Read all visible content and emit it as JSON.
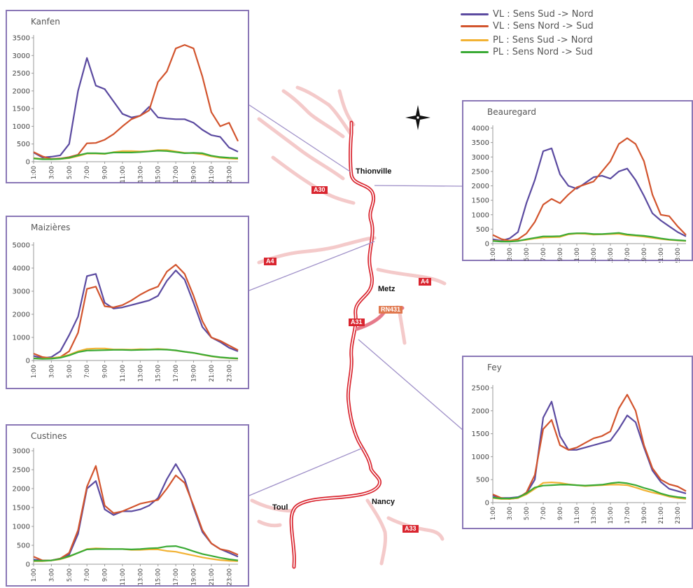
{
  "legend": [
    {
      "label": "VL : Sens Sud -> Nord",
      "color": "#5b4aa0"
    },
    {
      "label": "VL : Sens Nord -> Sud",
      "color": "#d2542d"
    },
    {
      "label": "PL : Sens Sud -> Nord",
      "color": "#f2b233"
    },
    {
      "label": "PL : Sens Nord -> Sud",
      "color": "#3aaa35"
    }
  ],
  "map": {
    "cities": {
      "thionville": "Thionville",
      "metz": "Metz",
      "nancy": "Nancy",
      "toul": "Toul"
    },
    "roads": {
      "a30": "A30",
      "a4_west": "A4",
      "a4_east": "A4",
      "a31": "A31",
      "rn431": "RN431",
      "a33": "A33"
    },
    "compass_icon": "compass-icon"
  },
  "chart_data": [
    {
      "type": "line",
      "title": "Kanfen",
      "x": [
        "1:00",
        "2:00",
        "3:00",
        "4:00",
        "5:00",
        "6:00",
        "7:00",
        "8:00",
        "9:00",
        "10:00",
        "11:00",
        "12:00",
        "13:00",
        "14:00",
        "15:00",
        "16:00",
        "17:00",
        "18:00",
        "19:00",
        "20:00",
        "21:00",
        "22:00",
        "23:00",
        "24:00"
      ],
      "xticks": [
        "1:00",
        "3:00",
        "5:00",
        "7:00",
        "9:00",
        "11:00",
        "13:00",
        "15:00",
        "17:00",
        "19:00",
        "21:00",
        "23:00"
      ],
      "ylim": [
        0,
        3500
      ],
      "yticks": [
        0,
        500,
        1000,
        1500,
        2000,
        2500,
        3000,
        3500
      ],
      "series": [
        {
          "values": [
            260,
            120,
            140,
            180,
            500,
            2000,
            2930,
            2150,
            2050,
            1700,
            1350,
            1250,
            1300,
            1550,
            1250,
            1220,
            1200,
            1200,
            1100,
            900,
            750,
            700,
            400,
            280
          ]
        },
        {
          "values": [
            270,
            150,
            80,
            90,
            130,
            200,
            520,
            530,
            620,
            780,
            1000,
            1200,
            1300,
            1450,
            2250,
            2550,
            3200,
            3300,
            3200,
            2400,
            1400,
            1000,
            1100,
            580
          ]
        },
        {
          "values": [
            100,
            80,
            70,
            80,
            100,
            160,
            230,
            230,
            220,
            270,
            300,
            300,
            290,
            300,
            330,
            330,
            290,
            250,
            240,
            210,
            150,
            110,
            90,
            80
          ]
        },
        {
          "values": [
            90,
            70,
            70,
            80,
            110,
            180,
            240,
            240,
            230,
            260,
            260,
            260,
            270,
            290,
            310,
            300,
            270,
            240,
            250,
            240,
            170,
            130,
            110,
            100
          ]
        }
      ]
    },
    {
      "type": "line",
      "title": "Beauregard",
      "x": [
        "1:00",
        "2:00",
        "3:00",
        "4:00",
        "5:00",
        "6:00",
        "7:00",
        "8:00",
        "9:00",
        "10:00",
        "11:00",
        "12:00",
        "13:00",
        "14:00",
        "15:00",
        "16:00",
        "17:00",
        "18:00",
        "19:00",
        "20:00",
        "21:00",
        "22:00",
        "23:00",
        "24:00"
      ],
      "xticks": [
        "1:00",
        "3:00",
        "5:00",
        "7:00",
        "9:00",
        "11:00",
        "13:00",
        "15:00",
        "17:00",
        "19:00",
        "21:00",
        "23:00"
      ],
      "ylim": [
        0,
        4000
      ],
      "yticks": [
        0,
        500,
        1000,
        1500,
        2000,
        2500,
        3000,
        3500,
        4000
      ],
      "series": [
        {
          "values": [
            150,
            100,
            180,
            400,
            1400,
            2200,
            3200,
            3300,
            2400,
            2000,
            1900,
            2100,
            2300,
            2350,
            2250,
            2500,
            2600,
            2200,
            1650,
            1050,
            800,
            600,
            400,
            250
          ]
        },
        {
          "values": [
            300,
            160,
            100,
            150,
            350,
            750,
            1350,
            1550,
            1400,
            1700,
            1950,
            2050,
            2150,
            2500,
            2850,
            3450,
            3650,
            3450,
            2850,
            1700,
            1000,
            950,
            600,
            300
          ]
        },
        {
          "values": [
            100,
            80,
            80,
            100,
            130,
            180,
            210,
            220,
            230,
            320,
            350,
            340,
            310,
            320,
            330,
            340,
            290,
            270,
            240,
            200,
            160,
            130,
            110,
            90
          ]
        },
        {
          "values": [
            90,
            70,
            70,
            90,
            150,
            200,
            250,
            250,
            260,
            340,
            360,
            360,
            330,
            330,
            350,
            370,
            320,
            290,
            270,
            230,
            180,
            140,
            120,
            100
          ]
        }
      ]
    },
    {
      "type": "line",
      "title": "Maizières",
      "x": [
        "1:00",
        "2:00",
        "3:00",
        "4:00",
        "5:00",
        "6:00",
        "7:00",
        "8:00",
        "9:00",
        "10:00",
        "11:00",
        "12:00",
        "13:00",
        "14:00",
        "15:00",
        "16:00",
        "17:00",
        "18:00",
        "19:00",
        "20:00",
        "21:00",
        "22:00",
        "23:00",
        "24:00"
      ],
      "xticks": [
        "1:00",
        "3:00",
        "5:00",
        "7:00",
        "9:00",
        "11:00",
        "13:00",
        "15:00",
        "17:00",
        "19:00",
        "21:00",
        "23:00"
      ],
      "ylim": [
        0,
        5000
      ],
      "yticks": [
        0,
        1000,
        2000,
        3000,
        4000,
        5000
      ],
      "series": [
        {
          "values": [
            200,
            100,
            150,
            400,
            1100,
            1900,
            3650,
            3750,
            2500,
            2250,
            2300,
            2400,
            2500,
            2600,
            2800,
            3450,
            3900,
            3500,
            2500,
            1450,
            1000,
            800,
            550,
            400
          ]
        },
        {
          "values": [
            300,
            150,
            100,
            150,
            400,
            1200,
            3100,
            3200,
            2350,
            2300,
            2400,
            2600,
            2850,
            3050,
            3200,
            3850,
            4150,
            3750,
            2800,
            1700,
            1000,
            850,
            650,
            450
          ]
        },
        {
          "values": [
            100,
            80,
            100,
            150,
            250,
            400,
            500,
            520,
            520,
            480,
            480,
            470,
            490,
            480,
            500,
            480,
            430,
            380,
            330,
            250,
            180,
            130,
            100,
            80
          ]
        },
        {
          "values": [
            90,
            70,
            80,
            120,
            220,
            360,
            430,
            440,
            450,
            460,
            460,
            450,
            460,
            470,
            480,
            470,
            440,
            380,
            330,
            260,
            190,
            140,
            110,
            90
          ]
        }
      ]
    },
    {
      "type": "line",
      "title": "Fey",
      "x": [
        "1:00",
        "2:00",
        "3:00",
        "4:00",
        "5:00",
        "6:00",
        "7:00",
        "8:00",
        "9:00",
        "10:00",
        "11:00",
        "12:00",
        "13:00",
        "14:00",
        "15:00",
        "16:00",
        "17:00",
        "18:00",
        "19:00",
        "20:00",
        "21:00",
        "22:00",
        "23:00",
        "24:00"
      ],
      "xticks": [
        "1:00",
        "3:00",
        "5:00",
        "7:00",
        "9:00",
        "11:00",
        "13:00",
        "15:00",
        "17:00",
        "19:00",
        "21:00",
        "23:00"
      ],
      "ylim": [
        0,
        2500
      ],
      "yticks": [
        0,
        500,
        1000,
        1500,
        2000,
        2500
      ],
      "series": [
        {
          "values": [
            150,
            100,
            100,
            120,
            200,
            500,
            1850,
            2200,
            1450,
            1150,
            1150,
            1200,
            1250,
            1300,
            1350,
            1600,
            1900,
            1750,
            1200,
            700,
            450,
            300,
            250,
            200
          ]
        },
        {
          "values": [
            180,
            100,
            80,
            100,
            220,
            600,
            1600,
            1800,
            1250,
            1150,
            1200,
            1300,
            1400,
            1450,
            1550,
            2050,
            2350,
            2000,
            1250,
            750,
            500,
            400,
            350,
            250
          ]
        },
        {
          "values": [
            100,
            80,
            80,
            100,
            180,
            300,
            430,
            440,
            430,
            400,
            380,
            360,
            370,
            380,
            390,
            390,
            380,
            330,
            270,
            220,
            180,
            130,
            100,
            80
          ]
        },
        {
          "values": [
            110,
            90,
            90,
            110,
            200,
            330,
            370,
            380,
            390,
            390,
            380,
            370,
            380,
            390,
            420,
            440,
            420,
            380,
            320,
            270,
            200,
            150,
            120,
            100
          ]
        }
      ]
    },
    {
      "type": "line",
      "title": "Custines",
      "x": [
        "1:00",
        "2:00",
        "3:00",
        "4:00",
        "5:00",
        "6:00",
        "7:00",
        "8:00",
        "9:00",
        "10:00",
        "11:00",
        "12:00",
        "13:00",
        "14:00",
        "15:00",
        "16:00",
        "17:00",
        "18:00",
        "19:00",
        "20:00",
        "21:00",
        "22:00",
        "23:00",
        "24:00"
      ],
      "xticks": [
        "1:00",
        "3:00",
        "5:00",
        "7:00",
        "9:00",
        "11:00",
        "13:00",
        "15:00",
        "17:00",
        "19:00",
        "21:00",
        "23:00"
      ],
      "ylim": [
        0,
        3000
      ],
      "yticks": [
        0,
        500,
        1000,
        1500,
        2000,
        2500,
        3000
      ],
      "series": [
        {
          "values": [
            120,
            100,
            100,
            150,
            250,
            800,
            2000,
            2200,
            1450,
            1300,
            1400,
            1400,
            1450,
            1550,
            1750,
            2250,
            2650,
            2250,
            1500,
            850,
            550,
            400,
            300,
            200
          ]
        },
        {
          "values": [
            200,
            100,
            100,
            150,
            300,
            900,
            2050,
            2600,
            1550,
            1350,
            1400,
            1500,
            1600,
            1650,
            1700,
            2000,
            2350,
            2150,
            1550,
            900,
            550,
            400,
            350,
            250
          ]
        },
        {
          "values": [
            80,
            80,
            100,
            130,
            200,
            300,
            400,
            420,
            410,
            400,
            400,
            380,
            380,
            390,
            390,
            350,
            330,
            280,
            230,
            180,
            140,
            110,
            90,
            80
          ]
        },
        {
          "values": [
            90,
            90,
            100,
            140,
            210,
            300,
            390,
            400,
            400,
            400,
            400,
            390,
            400,
            420,
            430,
            470,
            480,
            420,
            340,
            270,
            220,
            170,
            130,
            100
          ]
        }
      ]
    }
  ]
}
